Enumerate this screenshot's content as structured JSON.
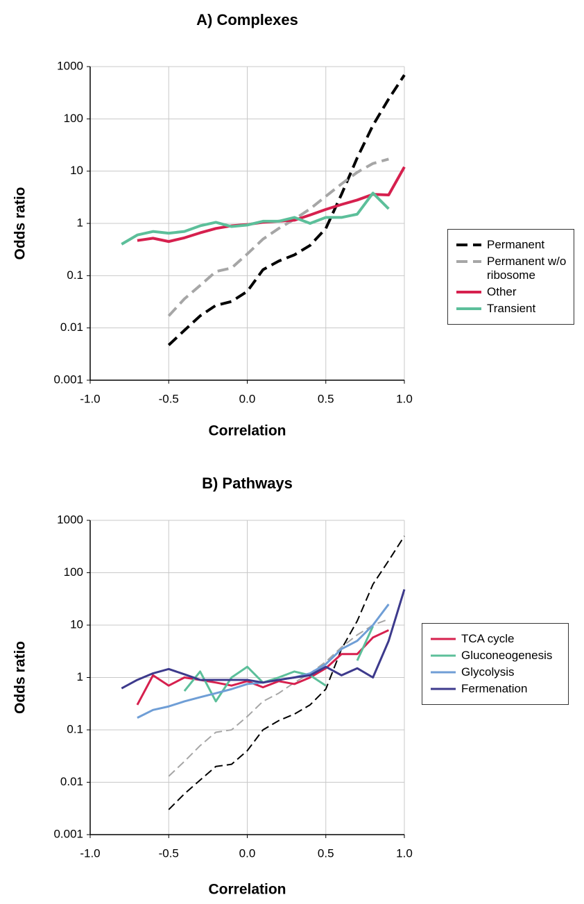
{
  "chart_data": [
    {
      "type": "line",
      "title": "A) Complexes",
      "xlabel": "Correlation",
      "ylabel": "Odds ratio",
      "xlim": [
        -1,
        1
      ],
      "xticks": [
        {
          "value": -1,
          "label": "-1.0"
        },
        {
          "value": -0.5,
          "label": "-0.5"
        },
        {
          "value": 0,
          "label": "0.0"
        },
        {
          "value": 0.5,
          "label": "0.5"
        },
        {
          "value": 1,
          "label": "1.0"
        }
      ],
      "ylim": [
        0.001,
        1000
      ],
      "yticks": [
        0.001,
        0.01,
        0.1,
        1,
        10,
        100,
        1000
      ],
      "log_y": true,
      "grid": true,
      "legend": "right",
      "series": [
        {
          "name": "Permanent",
          "color": "#000000",
          "style": "dashed",
          "x": [
            -0.5,
            -0.4,
            -0.3,
            -0.2,
            -0.1,
            0,
            0.1,
            0.2,
            0.3,
            0.4,
            0.5,
            0.6,
            0.7,
            0.8,
            0.9,
            1
          ],
          "values": [
            0.0047,
            0.009,
            0.017,
            0.027,
            0.032,
            0.05,
            0.13,
            0.19,
            0.25,
            0.38,
            0.8,
            3.6,
            18,
            75,
            240,
            690
          ]
        },
        {
          "name": "Permanent w/o ribosome",
          "color": "#a6a6a6",
          "style": "dashed",
          "x": [
            -0.5,
            -0.4,
            -0.3,
            -0.2,
            -0.1,
            0,
            0.1,
            0.2,
            0.3,
            0.4,
            0.5,
            0.6,
            0.7,
            0.8,
            0.9
          ],
          "values": [
            0.017,
            0.036,
            0.065,
            0.12,
            0.14,
            0.26,
            0.5,
            0.8,
            1.2,
            1.9,
            3.3,
            5.7,
            9.5,
            14,
            17
          ]
        },
        {
          "name": "Other",
          "color": "#d6204e",
          "style": "solid",
          "x": [
            -0.7,
            -0.6,
            -0.5,
            -0.4,
            -0.3,
            -0.2,
            -0.1,
            0,
            0.1,
            0.2,
            0.3,
            0.4,
            0.5,
            0.6,
            0.7,
            0.8,
            0.9,
            1
          ],
          "values": [
            0.47,
            0.52,
            0.45,
            0.53,
            0.66,
            0.8,
            0.9,
            0.95,
            1.05,
            1.1,
            1.15,
            1.45,
            1.85,
            2.3,
            2.8,
            3.6,
            3.5,
            12
          ]
        },
        {
          "name": "Transient",
          "color": "#5cbf9a",
          "style": "solid",
          "x": [
            -0.8,
            -0.7,
            -0.6,
            -0.5,
            -0.4,
            -0.3,
            -0.2,
            -0.1,
            0,
            0.1,
            0.2,
            0.3,
            0.4,
            0.5,
            0.6,
            0.7,
            0.8,
            0.9
          ],
          "values": [
            0.4,
            0.6,
            0.7,
            0.65,
            0.7,
            0.9,
            1.05,
            0.87,
            0.93,
            1.1,
            1.1,
            1.3,
            1.0,
            1.3,
            1.3,
            1.5,
            3.8,
            1.9
          ]
        }
      ]
    },
    {
      "type": "line",
      "title": "B) Pathways",
      "xlabel": "Correlation",
      "ylabel": "Odds ratio",
      "xlim": [
        -1,
        1
      ],
      "xticks": [
        {
          "value": -1,
          "label": "-1.0"
        },
        {
          "value": -0.5,
          "label": "-0.5"
        },
        {
          "value": 0,
          "label": "0.0"
        },
        {
          "value": 0.5,
          "label": "0.5"
        },
        {
          "value": 1,
          "label": "1.0"
        }
      ],
      "ylim": [
        0.001,
        1000
      ],
      "yticks": [
        0.001,
        0.01,
        0.1,
        1,
        10,
        100,
        1000
      ],
      "log_y": true,
      "grid": true,
      "legend": "right",
      "series": [
        {
          "color": "#000000",
          "style": "dashed",
          "x": [
            -0.5,
            -0.4,
            -0.3,
            -0.2,
            -0.1,
            0,
            0.1,
            0.2,
            0.3,
            0.4,
            0.5,
            0.6,
            0.7,
            0.8,
            0.9,
            1
          ],
          "values": [
            0.003,
            0.006,
            0.011,
            0.02,
            0.022,
            0.04,
            0.1,
            0.15,
            0.2,
            0.3,
            0.6,
            3.5,
            12,
            60,
            170,
            500
          ]
        },
        {
          "color": "#a6a6a6",
          "style": "dashed",
          "x": [
            -0.5,
            -0.4,
            -0.3,
            -0.2,
            -0.1,
            0,
            0.1,
            0.2,
            0.3,
            0.4,
            0.5,
            0.6,
            0.7,
            0.8,
            0.9
          ],
          "values": [
            0.013,
            0.025,
            0.05,
            0.09,
            0.1,
            0.18,
            0.35,
            0.5,
            0.8,
            1.2,
            2,
            3.8,
            6.5,
            10,
            13
          ]
        },
        {
          "name": "TCA cycle",
          "color": "#d6204e",
          "style": "solid",
          "x": [
            -0.7,
            -0.6,
            -0.5,
            -0.4,
            -0.3,
            -0.2,
            -0.1,
            0,
            0.1,
            0.2,
            0.3,
            0.4,
            0.5,
            0.6,
            0.7,
            0.8,
            0.9
          ],
          "values": [
            0.3,
            1.1,
            0.7,
            1.0,
            0.9,
            0.8,
            0.7,
            0.85,
            0.65,
            0.85,
            0.75,
            1.0,
            1.5,
            2.8,
            2.8,
            5.8,
            8
          ]
        },
        {
          "name": "Gluconeogenesis",
          "color": "#5cbf9a",
          "style": "solid",
          "x": [
            -0.4,
            -0.3,
            -0.2,
            -0.1,
            0,
            0.1,
            0.2,
            0.3,
            0.4,
            0.5,
            0.6,
            0.7,
            0.8
          ],
          "values": [
            0.55,
            1.3,
            0.35,
            1.0,
            1.6,
            0.8,
            1.0,
            1.3,
            1.1,
            0.7,
            null,
            2.1,
            9.5
          ]
        },
        {
          "name": "Glycolysis",
          "color": "#6f9ed6",
          "style": "solid",
          "x": [
            -0.7,
            -0.6,
            -0.5,
            -0.4,
            -0.3,
            -0.2,
            -0.1,
            0,
            0.1,
            0.2,
            0.3,
            0.4,
            0.5,
            0.6,
            0.7,
            0.8,
            0.9
          ],
          "values": [
            0.17,
            0.24,
            0.28,
            0.35,
            0.42,
            0.5,
            0.6,
            0.75,
            0.8,
            0.9,
            1.0,
            1.2,
            1.8,
            3.5,
            5,
            10,
            25
          ]
        },
        {
          "name": "Fermenation",
          "color": "#3d3a8c",
          "style": "solid",
          "x": [
            -0.8,
            -0.7,
            -0.6,
            -0.5,
            -0.4,
            -0.3,
            -0.2,
            -0.1,
            0,
            0.1,
            0.2,
            0.3,
            0.4,
            0.5,
            0.6,
            0.7,
            0.8,
            0.9,
            1
          ],
          "values": [
            0.62,
            0.9,
            1.2,
            1.45,
            1.15,
            0.9,
            0.9,
            0.9,
            0.9,
            0.8,
            0.9,
            1.0,
            1.1,
            1.6,
            1.1,
            1.5,
            1.0,
            5,
            48
          ]
        }
      ]
    }
  ]
}
